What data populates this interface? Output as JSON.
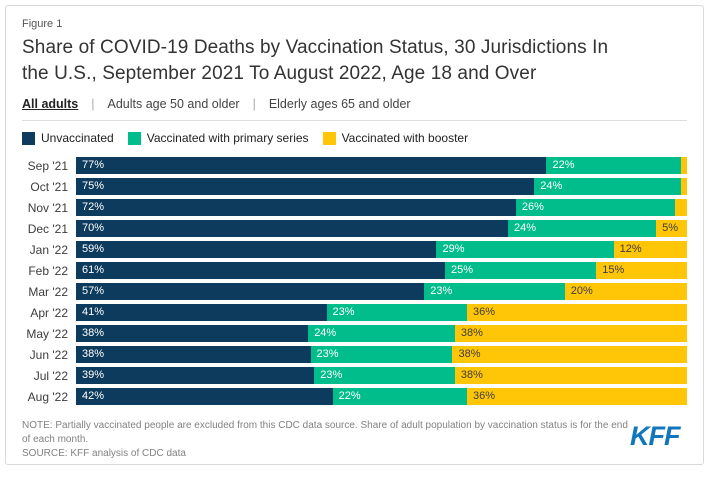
{
  "header": {
    "figure_label": "Figure 1",
    "title_line1": "Share of COVID-19 Deaths by Vaccination Status, 30 Jurisdictions In",
    "title_line2": "the U.S., September 2021 To August 2022, Age 18 and Over",
    "tab_separator": "|",
    "tabs": [
      {
        "label": "All adults",
        "active": true
      },
      {
        "label": "Adults age 50 and older",
        "active": false
      },
      {
        "label": "Elderly ages 65 and older",
        "active": false
      }
    ]
  },
  "legend": {
    "items": [
      {
        "label": "Unvaccinated",
        "color": "#0d3b5d"
      },
      {
        "label": "Vaccinated with primary series",
        "color": "#00bd8b"
      },
      {
        "label": "Vaccinated with booster",
        "color": "#ffc608"
      }
    ]
  },
  "chart_data": {
    "type": "bar",
    "stacked": true,
    "orientation": "horizontal",
    "title": "Share of COVID-19 Deaths by Vaccination Status, 30 Jurisdictions In the U.S., September 2021 To August 2022, Age 18 and Over",
    "xlim": [
      0,
      100
    ],
    "value_suffix": "%",
    "label_min": 5,
    "legend_position": "top",
    "categories": [
      "Sep '21",
      "Oct '21",
      "Nov '21",
      "Dec '21",
      "Jan '22",
      "Feb '22",
      "Mar '22",
      "Apr '22",
      "May '22",
      "Jun '22",
      "Jul '22",
      "Aug '22"
    ],
    "series": [
      {
        "key": "unvaccinated",
        "name": "Unvaccinated",
        "color": "#0d3b5d",
        "label_color": "#ffffff",
        "values": [
          77,
          75,
          72,
          70,
          59,
          61,
          57,
          41,
          38,
          38,
          39,
          42
        ]
      },
      {
        "key": "primary-series",
        "name": "Vaccinated with primary series",
        "color": "#00bd8b",
        "label_color": "#ffffff",
        "values": [
          22,
          24,
          26,
          24,
          29,
          25,
          23,
          23,
          24,
          23,
          23,
          22
        ]
      },
      {
        "key": "booster",
        "name": "Vaccinated with booster",
        "color": "#ffc608",
        "label_color": "#3c3c3c",
        "values": [
          1,
          1,
          2,
          5,
          12,
          15,
          20,
          36,
          38,
          38,
          38,
          36
        ]
      }
    ]
  },
  "footer": {
    "note": "NOTE: Partially vaccinated people are excluded from this CDC data source. Share of adult population by vaccination status is for the end of each month.",
    "source": "SOURCE: KFF analysis of CDC data",
    "logo_text": "KFF",
    "logo_color": "#1276bc"
  }
}
